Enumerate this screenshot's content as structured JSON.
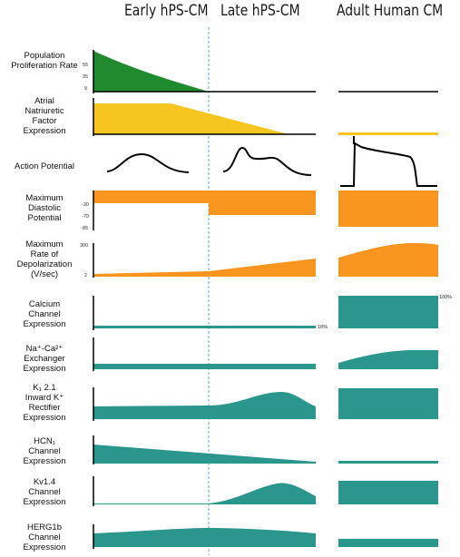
{
  "columns": [
    "Early hPS-CM",
    "Late hPS-CM",
    "Adult Human CM"
  ],
  "colors": {
    "green": "#1f8a2e",
    "yellow": "#f7c51f",
    "orange": "#f7951f",
    "teal": "#2a968c",
    "divider": "#6aa6d2"
  },
  "rows": [
    {
      "label": "Population\nProliferation Rate",
      "ticks": [
        "55",
        "35",
        "9"
      ]
    },
    {
      "label": "Atrial\nNatriuretic\nFactor\nExpression"
    },
    {
      "label": "Action Potential"
    },
    {
      "label": "Maximum\nDiastolic\nPotential",
      "ticks": [
        "-30",
        "-70",
        "85"
      ]
    },
    {
      "label": "Maximum\nRate of\nDepolarization\n(V/sec)",
      "ticks": [
        "300",
        "2"
      ]
    },
    {
      "label": "Calcium\nChannel\nExpression",
      "annotations": [
        "10%",
        "100%"
      ]
    },
    {
      "label": "Na⁺-Ca²⁺\nExchanger\nExpression"
    },
    {
      "label": "K₁ 2.1\nInward K⁺\nRectifier\nExpression"
    },
    {
      "label": "HCN₁\nChannel\nExpression"
    },
    {
      "label": "Kv1.4\nChannel\nExpression"
    },
    {
      "label": "HERG1b\nChannel\nExpression"
    }
  ]
}
